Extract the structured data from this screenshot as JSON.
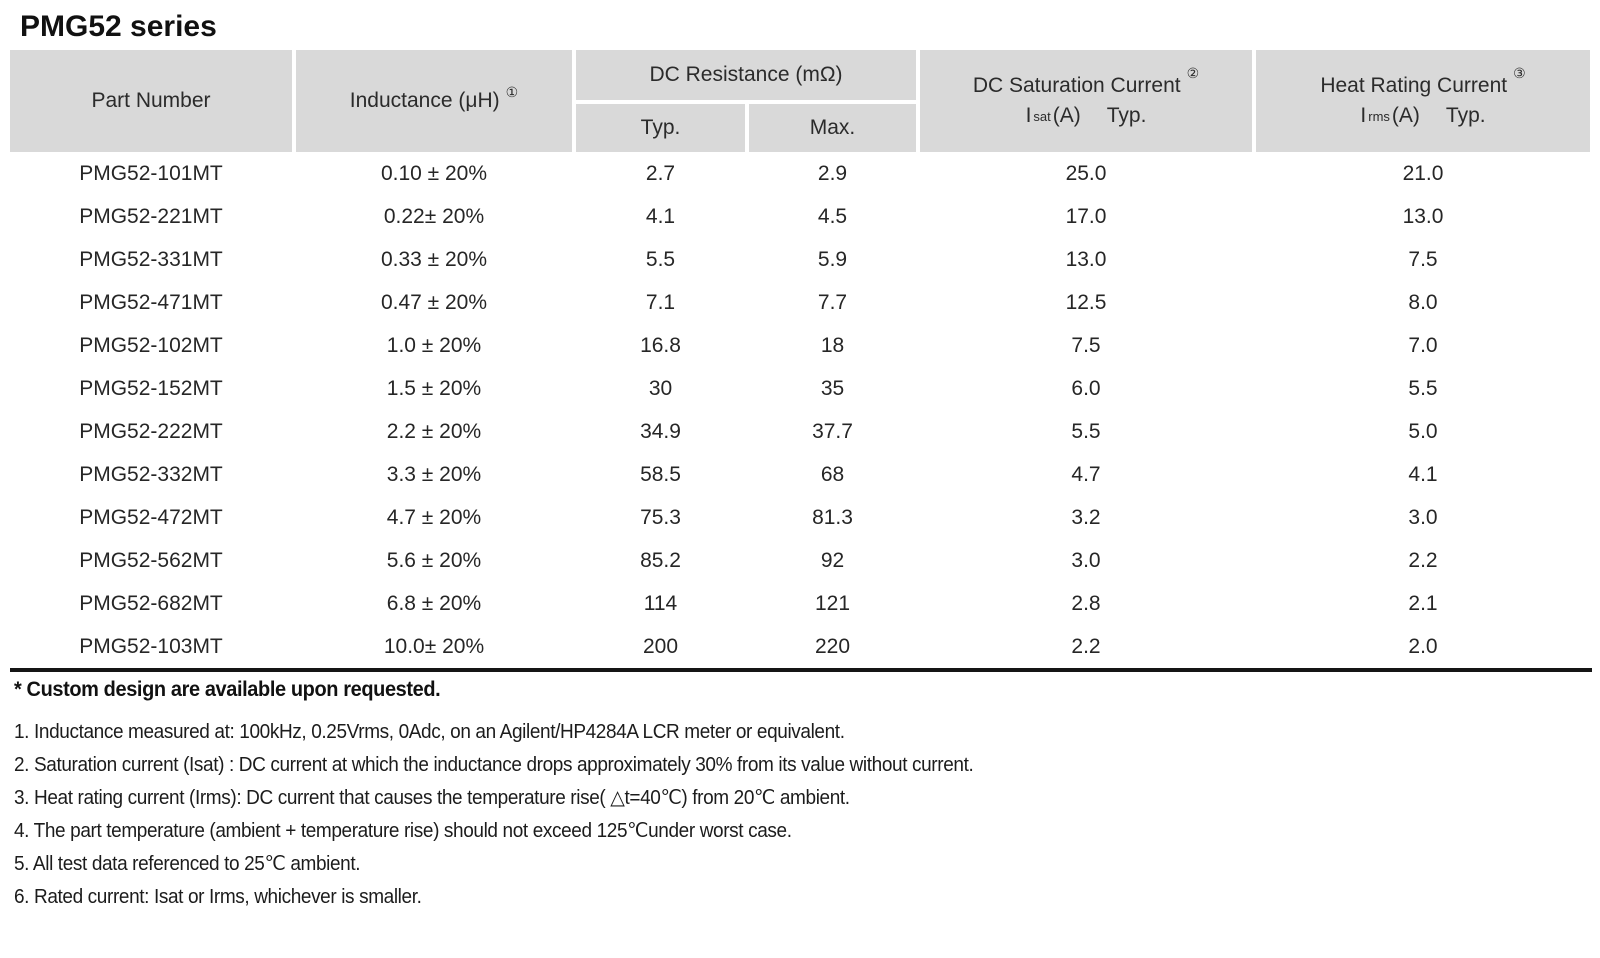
{
  "title": "PMG52 series",
  "colors": {
    "header_bg": "#d9d9d9",
    "text": "#1f1f1f",
    "rule": "#151515"
  },
  "table": {
    "headers": {
      "part_number": "Part Number",
      "inductance_label": "Inductance (μH)",
      "inductance_sup": "①",
      "dc_resistance_label": "DC Resistance (mΩ)",
      "typ": "Typ.",
      "max": "Max.",
      "saturation_label": "DC Saturation Current",
      "saturation_sup": "②",
      "saturation_i": "I",
      "saturation_sub": "sat",
      "saturation_unit": "(A)",
      "saturation_typ": "Typ.",
      "heat_label": "Heat Rating Current",
      "heat_sup": "③",
      "heat_i": "I",
      "heat_sub": "rms",
      "heat_unit": "(A)",
      "heat_typ": "Typ."
    },
    "rows": [
      {
        "part": "PMG52-101MT",
        "inductance": "0.10 ± 20%",
        "typ": "2.7",
        "max": "2.9",
        "isat": "25.0",
        "irms": "21.0"
      },
      {
        "part": "PMG52-221MT",
        "inductance": "0.22± 20%",
        "typ": "4.1",
        "max": "4.5",
        "isat": "17.0",
        "irms": "13.0"
      },
      {
        "part": "PMG52-331MT",
        "inductance": "0.33 ± 20%",
        "typ": "5.5",
        "max": "5.9",
        "isat": "13.0",
        "irms": "7.5"
      },
      {
        "part": "PMG52-471MT",
        "inductance": "0.47 ± 20%",
        "typ": "7.1",
        "max": "7.7",
        "isat": "12.5",
        "irms": "8.0"
      },
      {
        "part": "PMG52-102MT",
        "inductance": "1.0 ± 20%",
        "typ": "16.8",
        "max": "18",
        "isat": "7.5",
        "irms": "7.0"
      },
      {
        "part": "PMG52-152MT",
        "inductance": "1.5 ± 20%",
        "typ": "30",
        "max": "35",
        "isat": "6.0",
        "irms": "5.5"
      },
      {
        "part": "PMG52-222MT",
        "inductance": "2.2 ± 20%",
        "typ": "34.9",
        "max": "37.7",
        "isat": "5.5",
        "irms": "5.0"
      },
      {
        "part": "PMG52-332MT",
        "inductance": "3.3 ± 20%",
        "typ": "58.5",
        "max": "68",
        "isat": "4.7",
        "irms": "4.1"
      },
      {
        "part": "PMG52-472MT",
        "inductance": "4.7 ± 20%",
        "typ": "75.3",
        "max": "81.3",
        "isat": "3.2",
        "irms": "3.0"
      },
      {
        "part": "PMG52-562MT",
        "inductance": "5.6 ± 20%",
        "typ": "85.2",
        "max": "92",
        "isat": "3.0",
        "irms": "2.2"
      },
      {
        "part": "PMG52-682MT",
        "inductance": "6.8 ± 20%",
        "typ": "114",
        "max": "121",
        "isat": "2.8",
        "irms": "2.1"
      },
      {
        "part": "PMG52-103MT",
        "inductance": "10.0± 20%",
        "typ": "200",
        "max": "220",
        "isat": "2.2",
        "irms": "2.0"
      }
    ]
  },
  "notes": {
    "custom": "* Custom design are available upon requested.",
    "items": [
      "1. Inductance measured at: 100kHz, 0.25Vrms, 0Adc, on an Agilent/HP4284A LCR meter or equivalent.",
      "2. Saturation current (Isat) : DC current at which the inductance drops approximately 30% from its value without current.",
      "3. Heat rating current (Irms): DC current that causes the temperature rise( △t=40℃) from 20℃ ambient.",
      "4. The part temperature (ambient + temperature rise) should not exceed 125℃under worst case.",
      "5. All test data referenced to 25℃ ambient.",
      "6. Rated current: Isat or Irms, whichever is smaller."
    ]
  }
}
